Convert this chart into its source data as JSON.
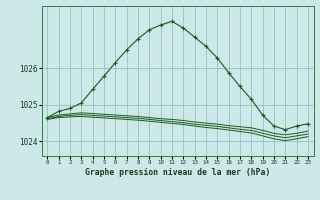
{
  "bg_color": "#cce8e8",
  "grid_color": "#88bbbb",
  "line_color": "#1a5c1a",
  "title": "Graphe pression niveau de la mer (hPa)",
  "xlabel_vals": [
    0,
    1,
    2,
    3,
    4,
    5,
    6,
    7,
    8,
    9,
    10,
    11,
    12,
    13,
    14,
    15,
    16,
    17,
    18,
    19,
    20,
    21,
    22,
    23
  ],
  "ylim": [
    1023.6,
    1027.7
  ],
  "yticks": [
    1024,
    1025,
    1026
  ],
  "series_flat1": [
    1024.65,
    1024.72,
    1024.75,
    1024.78,
    1024.76,
    1024.74,
    1024.72,
    1024.7,
    1024.68,
    1024.65,
    1024.62,
    1024.6,
    1024.57,
    1024.53,
    1024.5,
    1024.47,
    1024.43,
    1024.4,
    1024.37,
    1024.3,
    1024.22,
    1024.18,
    1024.22,
    1024.28
  ],
  "series_flat2": [
    1024.62,
    1024.68,
    1024.71,
    1024.73,
    1024.71,
    1024.69,
    1024.67,
    1024.65,
    1024.63,
    1024.6,
    1024.57,
    1024.54,
    1024.51,
    1024.47,
    1024.44,
    1024.41,
    1024.37,
    1024.33,
    1024.3,
    1024.22,
    1024.15,
    1024.1,
    1024.15,
    1024.2
  ],
  "series_flat3": [
    1024.6,
    1024.65,
    1024.67,
    1024.68,
    1024.66,
    1024.64,
    1024.62,
    1024.6,
    1024.58,
    1024.55,
    1024.52,
    1024.49,
    1024.46,
    1024.42,
    1024.38,
    1024.35,
    1024.31,
    1024.27,
    1024.23,
    1024.15,
    1024.07,
    1024.02,
    1024.07,
    1024.13
  ],
  "series_main": [
    1024.65,
    1024.82,
    1024.9,
    1025.05,
    1025.42,
    1025.78,
    1026.15,
    1026.5,
    1026.8,
    1027.05,
    1027.18,
    1027.28,
    1027.1,
    1026.85,
    1026.6,
    1026.28,
    1025.88,
    1025.5,
    1025.15,
    1024.72,
    1024.42,
    1024.32,
    1024.42,
    1024.48
  ]
}
